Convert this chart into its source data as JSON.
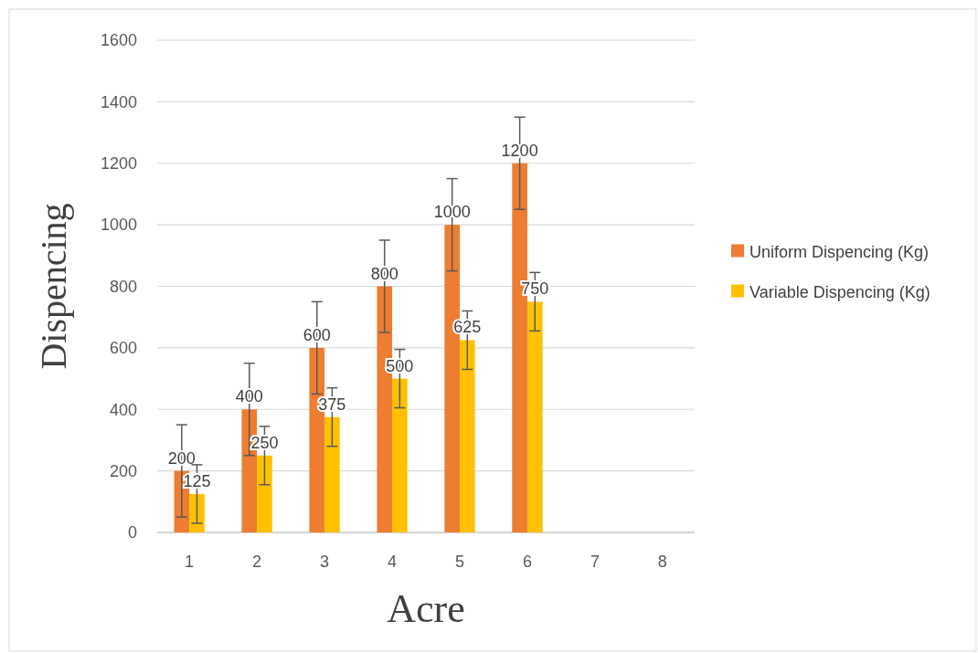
{
  "chart_data": {
    "type": "bar",
    "xlabel": "Acre",
    "ylabel": "Dispencing",
    "categories": [
      "1",
      "2",
      "3",
      "4",
      "5",
      "6",
      "7",
      "8"
    ],
    "series": [
      {
        "name": "Uniform Dispencing (Kg)",
        "color": "#ed7d31",
        "values": [
          200,
          400,
          600,
          800,
          1000,
          1200,
          null,
          null
        ],
        "errors": [
          150,
          150,
          150,
          150,
          150,
          150,
          null,
          null
        ]
      },
      {
        "name": "Variable Dispencing (Kg)",
        "color": "#ffc000",
        "values": [
          125,
          250,
          375,
          500,
          625,
          750,
          null,
          null
        ],
        "errors": [
          95,
          95,
          95,
          95,
          95,
          95,
          null,
          null
        ]
      }
    ],
    "ylim": [
      0,
      1600
    ],
    "yticks": [
      0,
      200,
      400,
      600,
      800,
      1000,
      1200,
      1400,
      1600
    ],
    "grid": "y",
    "legend": "right",
    "data_labels": true
  }
}
